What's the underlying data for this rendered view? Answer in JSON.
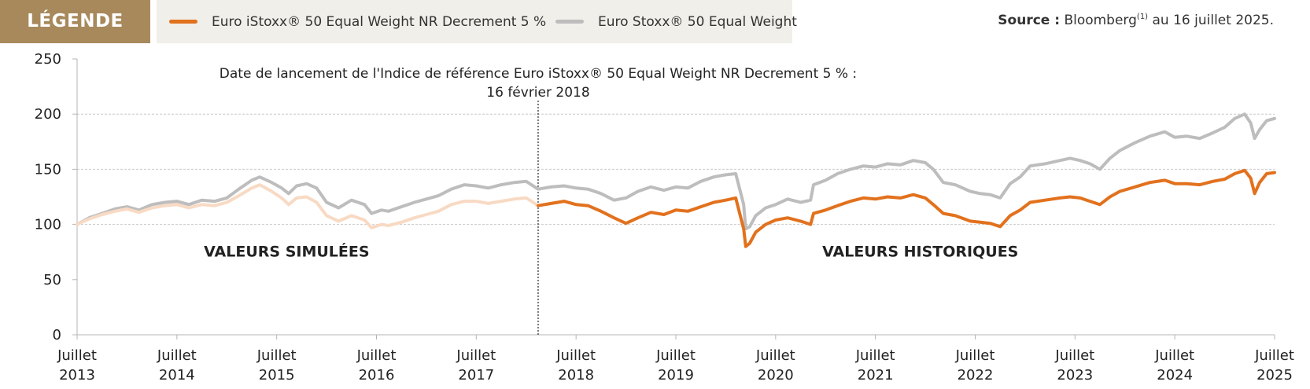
{
  "legend": {
    "title": "LÉGENDE",
    "items": [
      {
        "label": "Euro iStoxx® 50 Equal Weight NR Decrement 5 %",
        "color": "#e2711d"
      },
      {
        "label": "Euro Stoxx® 50 Equal Weight",
        "color": "#bdbdbd"
      }
    ]
  },
  "source": {
    "label": "Source :",
    "text": "Bloomberg",
    "sup": "(1)",
    "suffix": " au 16 juillet 2025."
  },
  "chart_data": {
    "type": "line",
    "ylim": [
      0,
      250
    ],
    "yticks": [
      0,
      50,
      100,
      150,
      200,
      250
    ],
    "xlim": [
      2013.5,
      2025.5
    ],
    "xticks": [
      {
        "x": 2013.5,
        "line1": "Juillet",
        "line2": "2013"
      },
      {
        "x": 2014.5,
        "line1": "Juillet",
        "line2": "2014"
      },
      {
        "x": 2015.5,
        "line1": "Juillet",
        "line2": "2015"
      },
      {
        "x": 2016.5,
        "line1": "Juillet",
        "line2": "2016"
      },
      {
        "x": 2017.5,
        "line1": "Juillet",
        "line2": "2017"
      },
      {
        "x": 2018.5,
        "line1": "Juillet",
        "line2": "2018"
      },
      {
        "x": 2019.5,
        "line1": "Juillet",
        "line2": "2019"
      },
      {
        "x": 2020.5,
        "line1": "Juillet",
        "line2": "2020"
      },
      {
        "x": 2021.5,
        "line1": "Juillet",
        "line2": "2021"
      },
      {
        "x": 2022.5,
        "line1": "Juillet",
        "line2": "2022"
      },
      {
        "x": 2023.5,
        "line1": "Juillet",
        "line2": "2023"
      },
      {
        "x": 2024.5,
        "line1": "Juillet",
        "line2": "2024"
      },
      {
        "x": 2025.5,
        "line1": "Juillet",
        "line2": "2025"
      }
    ],
    "gridlines": [
      100,
      150,
      200
    ],
    "launch": {
      "x": 2018.12,
      "line1": "Date de lancement de l'Indice de référence Euro iStoxx® 50 Equal Weight NR Decrement 5 % :",
      "line2": "16 février 2018"
    },
    "region_labels": [
      {
        "text": "VALEURS SIMULÉES",
        "x": 2015.6,
        "y": 75
      },
      {
        "text": "VALEURS HISTORIQUES",
        "x": 2021.95,
        "y": 75
      }
    ],
    "series": [
      {
        "name": "Euro Stoxx® 50 Equal Weight",
        "color": "#bdbdbd",
        "points": [
          [
            2013.5,
            100
          ],
          [
            2013.62,
            106
          ],
          [
            2013.75,
            110
          ],
          [
            2013.88,
            114
          ],
          [
            2014.0,
            116
          ],
          [
            2014.12,
            113
          ],
          [
            2014.25,
            118
          ],
          [
            2014.38,
            120
          ],
          [
            2014.5,
            121
          ],
          [
            2014.62,
            118
          ],
          [
            2014.75,
            122
          ],
          [
            2014.88,
            121
          ],
          [
            2015.0,
            124
          ],
          [
            2015.12,
            132
          ],
          [
            2015.25,
            140
          ],
          [
            2015.33,
            143
          ],
          [
            2015.45,
            138
          ],
          [
            2015.55,
            133
          ],
          [
            2015.62,
            128
          ],
          [
            2015.7,
            135
          ],
          [
            2015.8,
            137
          ],
          [
            2015.9,
            133
          ],
          [
            2016.0,
            120
          ],
          [
            2016.12,
            115
          ],
          [
            2016.25,
            122
          ],
          [
            2016.38,
            118
          ],
          [
            2016.45,
            110
          ],
          [
            2016.55,
            113
          ],
          [
            2016.62,
            112
          ],
          [
            2016.75,
            116
          ],
          [
            2016.88,
            120
          ],
          [
            2017.0,
            123
          ],
          [
            2017.12,
            126
          ],
          [
            2017.25,
            132
          ],
          [
            2017.38,
            136
          ],
          [
            2017.5,
            135
          ],
          [
            2017.62,
            133
          ],
          [
            2017.75,
            136
          ],
          [
            2017.88,
            138
          ],
          [
            2018.0,
            139
          ],
          [
            2018.12,
            132
          ],
          [
            2018.25,
            134
          ],
          [
            2018.38,
            135
          ],
          [
            2018.5,
            133
          ],
          [
            2018.62,
            132
          ],
          [
            2018.75,
            128
          ],
          [
            2018.88,
            122
          ],
          [
            2019.0,
            124
          ],
          [
            2019.12,
            130
          ],
          [
            2019.25,
            134
          ],
          [
            2019.38,
            131
          ],
          [
            2019.5,
            134
          ],
          [
            2019.62,
            133
          ],
          [
            2019.75,
            139
          ],
          [
            2019.88,
            143
          ],
          [
            2020.0,
            145
          ],
          [
            2020.1,
            146
          ],
          [
            2020.18,
            118
          ],
          [
            2020.2,
            96
          ],
          [
            2020.24,
            98
          ],
          [
            2020.3,
            108
          ],
          [
            2020.4,
            115
          ],
          [
            2020.5,
            118
          ],
          [
            2020.62,
            123
          ],
          [
            2020.75,
            120
          ],
          [
            2020.85,
            122
          ],
          [
            2020.88,
            136
          ],
          [
            2021.0,
            140
          ],
          [
            2021.12,
            146
          ],
          [
            2021.25,
            150
          ],
          [
            2021.38,
            153
          ],
          [
            2021.5,
            152
          ],
          [
            2021.62,
            155
          ],
          [
            2021.75,
            154
          ],
          [
            2021.88,
            158
          ],
          [
            2022.0,
            156
          ],
          [
            2022.08,
            150
          ],
          [
            2022.18,
            138
          ],
          [
            2022.3,
            136
          ],
          [
            2022.45,
            130
          ],
          [
            2022.55,
            128
          ],
          [
            2022.65,
            127
          ],
          [
            2022.75,
            124
          ],
          [
            2022.85,
            137
          ],
          [
            2022.95,
            143
          ],
          [
            2023.05,
            153
          ],
          [
            2023.2,
            155
          ],
          [
            2023.35,
            158
          ],
          [
            2023.45,
            160
          ],
          [
            2023.55,
            158
          ],
          [
            2023.65,
            155
          ],
          [
            2023.75,
            150
          ],
          [
            2023.85,
            160
          ],
          [
            2023.95,
            167
          ],
          [
            2024.1,
            174
          ],
          [
            2024.25,
            180
          ],
          [
            2024.4,
            184
          ],
          [
            2024.5,
            179
          ],
          [
            2024.62,
            180
          ],
          [
            2024.75,
            178
          ],
          [
            2024.88,
            183
          ],
          [
            2025.0,
            188
          ],
          [
            2025.1,
            196
          ],
          [
            2025.2,
            200
          ],
          [
            2025.26,
            192
          ],
          [
            2025.3,
            178
          ],
          [
            2025.35,
            186
          ],
          [
            2025.42,
            194
          ],
          [
            2025.5,
            196
          ]
        ]
      },
      {
        "name": "Euro iStoxx® 50 Equal Weight NR Decrement 5 %",
        "color": "#e2711d",
        "simulated_color": "#f8dac4",
        "launch_x": 2018.12,
        "points": [
          [
            2013.5,
            100
          ],
          [
            2013.62,
            105
          ],
          [
            2013.75,
            109
          ],
          [
            2013.88,
            112
          ],
          [
            2014.0,
            114
          ],
          [
            2014.12,
            111
          ],
          [
            2014.25,
            115
          ],
          [
            2014.38,
            117
          ],
          [
            2014.5,
            118
          ],
          [
            2014.62,
            115
          ],
          [
            2014.75,
            118
          ],
          [
            2014.88,
            117
          ],
          [
            2015.0,
            120
          ],
          [
            2015.12,
            126
          ],
          [
            2015.25,
            133
          ],
          [
            2015.33,
            136
          ],
          [
            2015.45,
            130
          ],
          [
            2015.55,
            124
          ],
          [
            2015.62,
            118
          ],
          [
            2015.7,
            124
          ],
          [
            2015.8,
            125
          ],
          [
            2015.9,
            120
          ],
          [
            2016.0,
            108
          ],
          [
            2016.12,
            103
          ],
          [
            2016.25,
            108
          ],
          [
            2016.38,
            104
          ],
          [
            2016.45,
            97
          ],
          [
            2016.55,
            100
          ],
          [
            2016.62,
            99
          ],
          [
            2016.75,
            102
          ],
          [
            2016.88,
            106
          ],
          [
            2017.0,
            109
          ],
          [
            2017.12,
            112
          ],
          [
            2017.25,
            118
          ],
          [
            2017.38,
            121
          ],
          [
            2017.5,
            121
          ],
          [
            2017.62,
            119
          ],
          [
            2017.75,
            121
          ],
          [
            2017.88,
            123
          ],
          [
            2018.0,
            124
          ],
          [
            2018.12,
            117
          ],
          [
            2018.25,
            119
          ],
          [
            2018.38,
            121
          ],
          [
            2018.5,
            118
          ],
          [
            2018.62,
            117
          ],
          [
            2018.75,
            112
          ],
          [
            2018.88,
            106
          ],
          [
            2019.0,
            101
          ],
          [
            2019.12,
            106
          ],
          [
            2019.25,
            111
          ],
          [
            2019.38,
            109
          ],
          [
            2019.5,
            113
          ],
          [
            2019.62,
            112
          ],
          [
            2019.75,
            116
          ],
          [
            2019.88,
            120
          ],
          [
            2020.0,
            122
          ],
          [
            2020.1,
            124
          ],
          [
            2020.18,
            96
          ],
          [
            2020.2,
            80
          ],
          [
            2020.24,
            83
          ],
          [
            2020.3,
            93
          ],
          [
            2020.4,
            100
          ],
          [
            2020.5,
            104
          ],
          [
            2020.62,
            106
          ],
          [
            2020.75,
            103
          ],
          [
            2020.85,
            100
          ],
          [
            2020.88,
            110
          ],
          [
            2021.0,
            113
          ],
          [
            2021.12,
            117
          ],
          [
            2021.25,
            121
          ],
          [
            2021.38,
            124
          ],
          [
            2021.5,
            123
          ],
          [
            2021.62,
            125
          ],
          [
            2021.75,
            124
          ],
          [
            2021.88,
            127
          ],
          [
            2022.0,
            124
          ],
          [
            2022.08,
            118
          ],
          [
            2022.18,
            110
          ],
          [
            2022.3,
            108
          ],
          [
            2022.45,
            103
          ],
          [
            2022.55,
            102
          ],
          [
            2022.65,
            101
          ],
          [
            2022.75,
            98
          ],
          [
            2022.85,
            108
          ],
          [
            2022.95,
            113
          ],
          [
            2023.05,
            120
          ],
          [
            2023.2,
            122
          ],
          [
            2023.35,
            124
          ],
          [
            2023.45,
            125
          ],
          [
            2023.55,
            124
          ],
          [
            2023.65,
            121
          ],
          [
            2023.75,
            118
          ],
          [
            2023.85,
            125
          ],
          [
            2023.95,
            130
          ],
          [
            2024.1,
            134
          ],
          [
            2024.25,
            138
          ],
          [
            2024.4,
            140
          ],
          [
            2024.5,
            137
          ],
          [
            2024.62,
            137
          ],
          [
            2024.75,
            136
          ],
          [
            2024.88,
            139
          ],
          [
            2025.0,
            141
          ],
          [
            2025.1,
            146
          ],
          [
            2025.2,
            149
          ],
          [
            2025.26,
            142
          ],
          [
            2025.3,
            128
          ],
          [
            2025.35,
            138
          ],
          [
            2025.42,
            146
          ],
          [
            2025.5,
            147
          ]
        ]
      }
    ]
  }
}
